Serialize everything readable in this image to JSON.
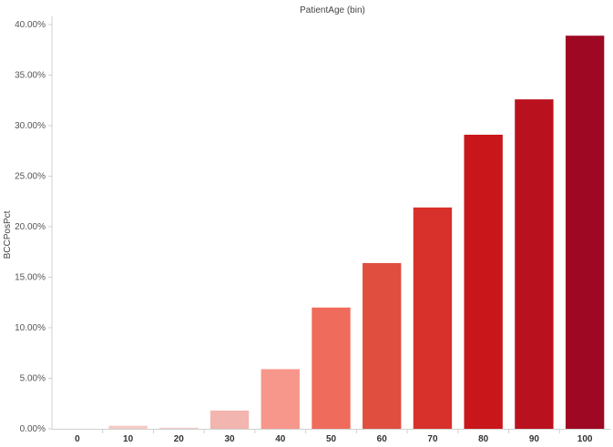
{
  "chart_data": {
    "type": "bar",
    "title": "PatientAge (bin)",
    "xlabel": "",
    "ylabel": "BCCPosPct",
    "categories": [
      "0",
      "10",
      "20",
      "30",
      "40",
      "50",
      "60",
      "70",
      "80",
      "90",
      "100"
    ],
    "values": [
      0.0,
      0.3,
      0.1,
      1.8,
      5.9,
      12.0,
      16.4,
      21.9,
      29.1,
      32.6,
      38.9
    ],
    "value_unit": "percent",
    "ylim": [
      0,
      40
    ],
    "yticks": [
      "0.00%",
      "5.00%",
      "10.00%",
      "15.00%",
      "20.00%",
      "25.00%",
      "30.00%",
      "35.00%",
      "40.00%"
    ],
    "colors": [
      "#f4c9c5",
      "#f4c9c5",
      "#f4c9c5",
      "#f2b5af",
      "#f7968a",
      "#ef6b5b",
      "#e04e40",
      "#d8302a",
      "#c8161a",
      "#b9121e",
      "#9e0822"
    ],
    "grid": false,
    "legend": "none"
  }
}
